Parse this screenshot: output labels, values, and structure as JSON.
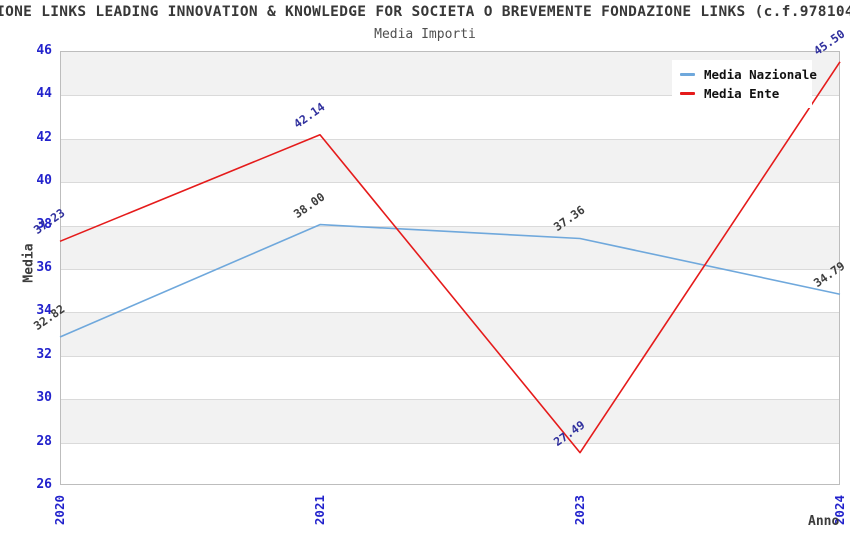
{
  "chart_data": {
    "type": "line",
    "title": "IONE LINKS LEADING INNOVATION & KNOWLEDGE FOR SOCIETA O BREVEMENTE FONDAZIONE LINKS (c.f.978104",
    "subtitle": "Media Importi",
    "xlabel": "Anno",
    "ylabel": "Media",
    "categories": [
      "2020",
      "2021",
      "2023",
      "2024"
    ],
    "series": [
      {
        "name": "Media Nazionale",
        "values": [
          32.82,
          38.0,
          37.36,
          34.79
        ],
        "value_labels": [
          "32.82",
          "38.00",
          "37.36",
          "34.79"
        ],
        "color": "#6fa8dc",
        "value_label_color": "#3c3c3c"
      },
      {
        "name": "Media Ente",
        "values": [
          37.23,
          42.14,
          27.49,
          45.5
        ],
        "value_labels": [
          "37.23",
          "42.14",
          "27.49",
          "45.50"
        ],
        "color": "#e51b1b",
        "value_label_color": "#2f2f9d"
      }
    ],
    "ylim": [
      26,
      46
    ],
    "ytick_step": 2,
    "yticks": [
      "46",
      "44",
      "42",
      "40",
      "38",
      "36",
      "34",
      "32",
      "30",
      "28",
      "26"
    ],
    "grid": "horizontal-gridlines-with-alternating-gray-bands",
    "band_color": "#f2f2f2",
    "gridline_color": "#dadada",
    "axis_tick_color": "#2222cc",
    "legend_position": "top-right"
  }
}
